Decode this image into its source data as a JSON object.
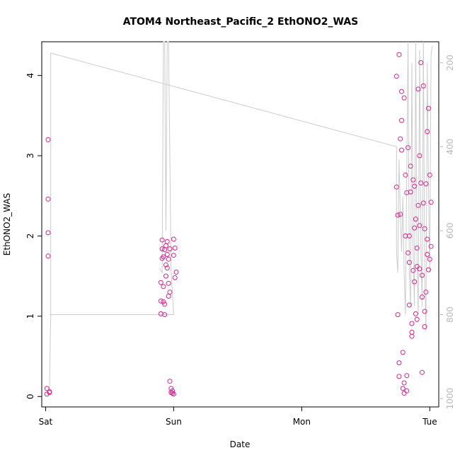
{
  "chart_data": {
    "type": "scatter",
    "title": "ATOM4 Northeast_Pacific_2 EthONO2_WAS",
    "xlabel": "Date",
    "ylabel": "EthONO2_WAS",
    "x_ticks": [
      "Sat",
      "Sun",
      "Mon",
      "Tue"
    ],
    "xlim_days": [
      -0.03,
      3.07
    ],
    "y_ticks": [
      0,
      1,
      2,
      3,
      4
    ],
    "ylim": [
      -0.13,
      4.42
    ],
    "right_ticks": [
      200,
      400,
      600,
      800,
      1000
    ],
    "right_ylim": [
      1020,
      150
    ],
    "colors": {
      "points": "#e0218a",
      "line": "#cccccc",
      "axis": "#000000",
      "right_axis": "#b8b8b8"
    },
    "series": [
      {
        "marker": "circle",
        "x": [
          0.01,
          0.01,
          0.02,
          0.02,
          0.02,
          0.02,
          0.03,
          0.03,
          0.9,
          0.9,
          0.9,
          0.91,
          0.91,
          0.91,
          0.92,
          0.92,
          0.92,
          0.93,
          0.93,
          0.93,
          0.94,
          0.94,
          0.94,
          0.95,
          0.95,
          0.95,
          0.96,
          0.96,
          0.96,
          0.97,
          0.97,
          0.97,
          0.98,
          0.98,
          0.99,
          0.99,
          1.0,
          1.0,
          1.0,
          1.01,
          1.01,
          1.02,
          2.74,
          2.74,
          2.75,
          2.75,
          2.76,
          2.76,
          2.77,
          2.77,
          2.78,
          2.78,
          2.79,
          2.79,
          2.8,
          2.8,
          2.81,
          2.81,
          2.82,
          2.82,
          2.83,
          2.83,
          2.84,
          2.84,
          2.85,
          2.85,
          2.86,
          2.86,
          2.87,
          2.87,
          2.88,
          2.88,
          2.89,
          2.89,
          2.9,
          2.9,
          2.91,
          2.91,
          2.92,
          2.92,
          2.93,
          2.93,
          2.94,
          2.94,
          2.95,
          2.95,
          2.96,
          2.96,
          2.97,
          2.97,
          2.98,
          2.98,
          2.99,
          2.99,
          3.0,
          3.0,
          3.01,
          3.01,
          2.76,
          2.78,
          2.8,
          2.82,
          2.84,
          2.86,
          2.88,
          2.9,
          2.92,
          2.94,
          2.96,
          2.98
        ],
        "y": [
          0.03,
          0.1,
          1.75,
          2.04,
          2.46,
          3.2,
          0.06,
          0.05,
          1.03,
          1.19,
          1.42,
          1.84,
          1.95,
          1.72,
          1.18,
          1.37,
          1.74,
          1.02,
          1.15,
          1.83,
          1.5,
          1.88,
          1.64,
          1.6,
          1.93,
          1.77,
          1.41,
          1.25,
          1.71,
          1.3,
          0.19,
          1.84,
          0.1,
          0.05,
          0.07,
          0.04,
          0.03,
          1.76,
          1.96,
          1.85,
          1.48,
          1.55,
          2.61,
          3.99,
          2.26,
          1.02,
          0.42,
          0.25,
          3.21,
          2.27,
          3.8,
          3.07,
          0.1,
          0.55,
          0.17,
          0.04,
          2.76,
          2.0,
          0.07,
          0.26,
          3.1,
          1.79,
          1.67,
          2.0,
          2.55,
          2.87,
          0.91,
          0.8,
          1.57,
          2.7,
          2.1,
          1.43,
          1.03,
          2.21,
          0.96,
          1.85,
          3.83,
          2.38,
          1.59,
          2.13,
          4.16,
          2.66,
          1.24,
          1.51,
          2.41,
          3.87,
          1.06,
          0.87,
          1.3,
          2.65,
          3.3,
          1.96,
          1.58,
          3.59,
          2.76,
          1.71,
          2.42,
          1.87,
          4.26,
          3.44,
          3.72,
          2.54,
          1.14,
          0.75,
          2.62,
          1.62,
          3.0,
          0.3,
          2.09,
          1.77
        ]
      }
    ]
  }
}
